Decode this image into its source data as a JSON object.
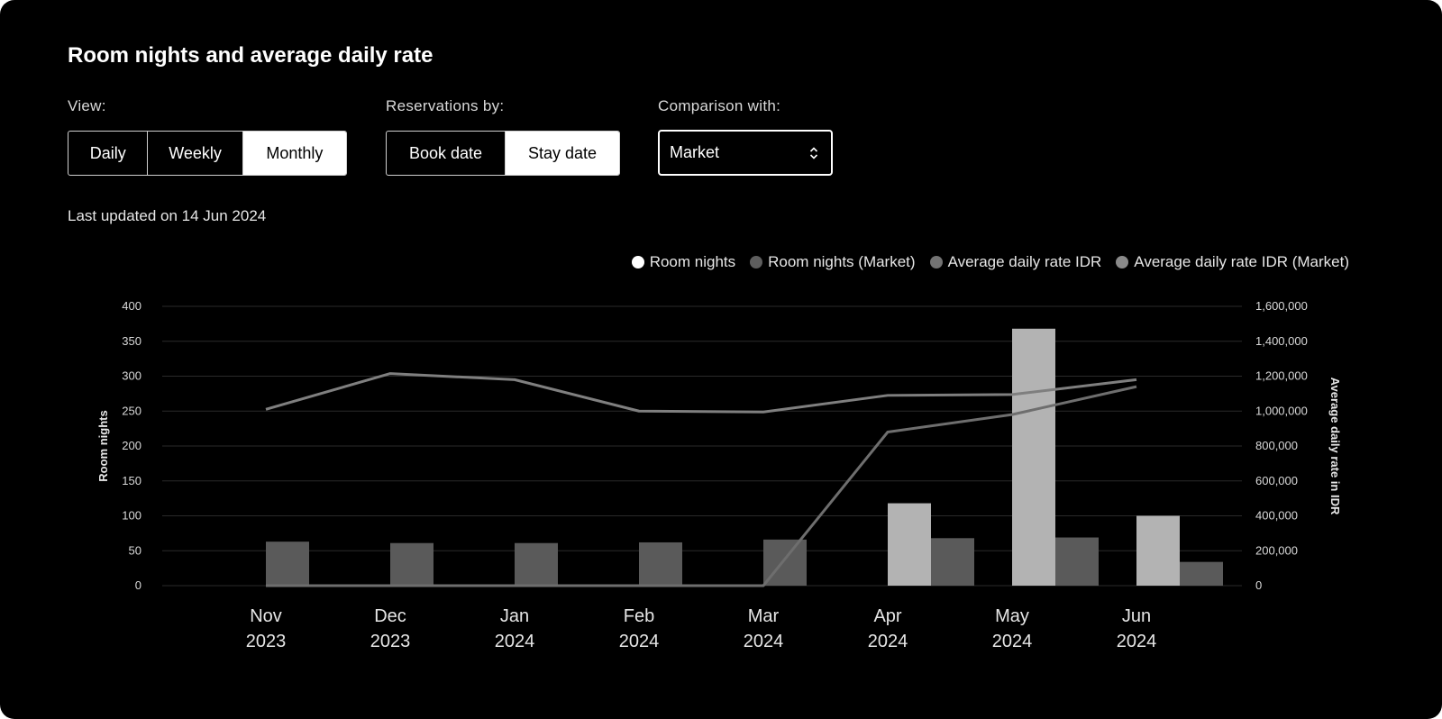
{
  "title": "Room nights and average daily rate",
  "controls": {
    "view": {
      "label": "View:",
      "options": [
        "Daily",
        "Weekly",
        "Monthly"
      ],
      "selected": "Monthly"
    },
    "reservations": {
      "label": "Reservations by:",
      "options": [
        "Book date",
        "Stay date"
      ],
      "selected": "Stay date"
    },
    "comparison": {
      "label": "Comparison with:",
      "value": "Market"
    }
  },
  "last_updated": "Last updated on 14 Jun 2024",
  "colors": {
    "room_nights": "#b3b3b3",
    "room_nights_market": "#5a5a5a",
    "adr": "#6e6e6e",
    "adr_market": "#7f7f7f",
    "grid": "#2a2a2a"
  },
  "legend": [
    {
      "label": "Room nights",
      "color": "#ffffff"
    },
    {
      "label": "Room nights (Market)",
      "color": "#5e5e5e"
    },
    {
      "label": "Average daily rate IDR",
      "color": "#737373"
    },
    {
      "label": "Average daily rate IDR (Market)",
      "color": "#8a8a8a"
    }
  ],
  "chart_data": {
    "type": "bar",
    "categories": [
      [
        "Nov",
        "2023"
      ],
      [
        "Dec",
        "2023"
      ],
      [
        "Jan",
        "2024"
      ],
      [
        "Feb",
        "2024"
      ],
      [
        "Mar",
        "2024"
      ],
      [
        "Apr",
        "2024"
      ],
      [
        "May",
        "2024"
      ],
      [
        "Jun",
        "2024"
      ]
    ],
    "ylabel": "Room nights",
    "y2label": "Average daily rate in IDR",
    "ylim": [
      0,
      400
    ],
    "yticks": [
      0,
      50,
      100,
      150,
      200,
      250,
      300,
      350,
      400
    ],
    "y2lim": [
      0,
      1600000
    ],
    "y2ticks": [
      "0",
      "200,000",
      "400,000",
      "600,000",
      "800,000",
      "1,000,000",
      "1,200,000",
      "1,400,000",
      "1,600,000"
    ],
    "grid": true,
    "legend_position": "top-right",
    "series": [
      {
        "name": "Room nights",
        "type": "bar",
        "axis": "left",
        "values": [
          0,
          0,
          0,
          0,
          0,
          118,
          368,
          100
        ]
      },
      {
        "name": "Room nights (Market)",
        "type": "bar",
        "axis": "left",
        "values": [
          63,
          61,
          61,
          62,
          66,
          68,
          69,
          34
        ]
      },
      {
        "name": "Average daily rate IDR",
        "type": "line",
        "axis": "right",
        "values": [
          0,
          0,
          0,
          0,
          0,
          880000,
          980000,
          1140000
        ]
      },
      {
        "name": "Average daily rate IDR (Market)",
        "type": "line",
        "axis": "right",
        "values": [
          1010000,
          1215000,
          1180000,
          1000000,
          995000,
          1090000,
          1095000,
          1180000
        ]
      }
    ]
  }
}
